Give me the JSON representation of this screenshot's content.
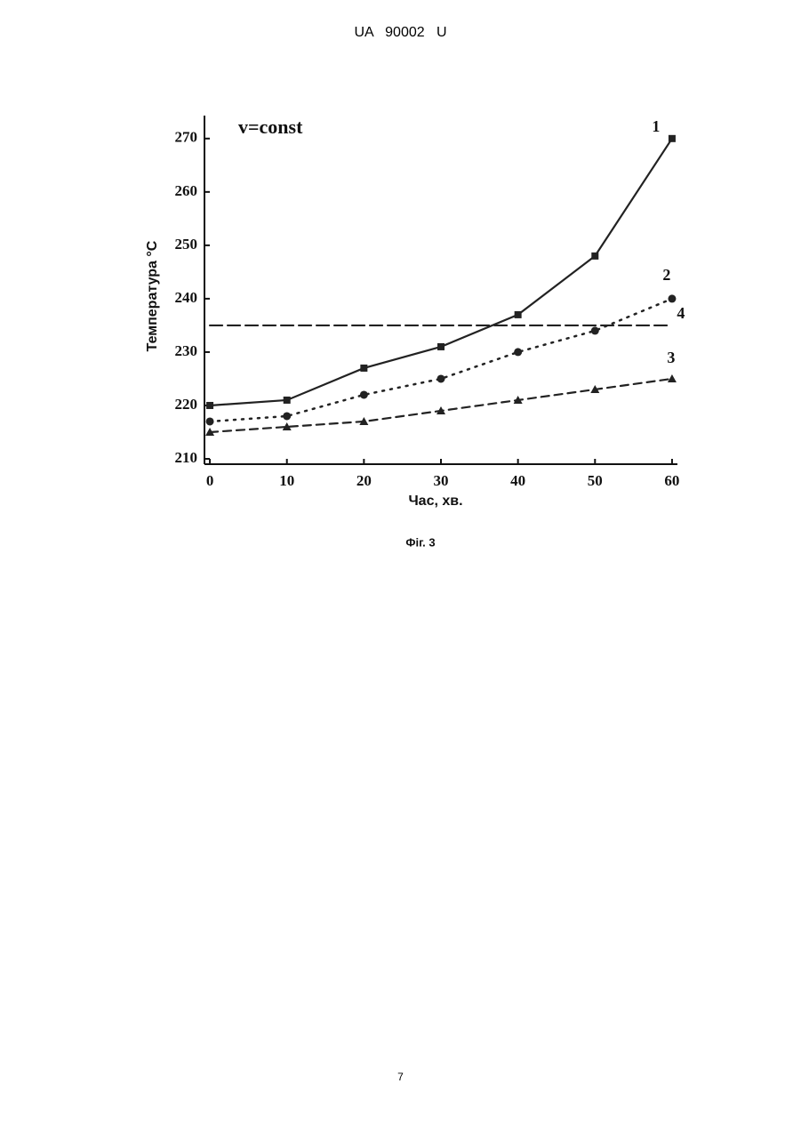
{
  "header": "UA   90002   U",
  "chart_data": {
    "type": "line",
    "annotation": "v=const",
    "x_label": "Час, хв.",
    "y_label": "Температура °C",
    "x": [
      0,
      10,
      20,
      30,
      40,
      50,
      60
    ],
    "xlim": [
      -0.7,
      60.7
    ],
    "xticks": [
      0,
      10,
      20,
      30,
      40,
      50,
      60
    ],
    "ylim": [
      209,
      274.3
    ],
    "yticks": [
      210,
      220,
      230,
      240,
      250,
      260,
      270
    ],
    "series": [
      {
        "name": "1",
        "color": "#222222",
        "dash": "solid",
        "marker": "square",
        "values": [
          220,
          221,
          227,
          231,
          237,
          248,
          270
        ]
      },
      {
        "name": "2",
        "color": "#222222",
        "dash": "dotted",
        "marker": "circle",
        "values": [
          217,
          218,
          222,
          225,
          230,
          234,
          240
        ]
      },
      {
        "name": "3",
        "color": "#222222",
        "dash": "dashed",
        "marker": "triangle",
        "values": [
          215,
          216,
          217,
          219,
          221,
          223,
          225
        ]
      },
      {
        "name": "4",
        "color": "#222222",
        "dash": "longdash",
        "marker": null,
        "x": [
          0,
          60
        ],
        "values": [
          235,
          235
        ]
      }
    ]
  },
  "caption": "Фіг. 3",
  "page_number": "7"
}
